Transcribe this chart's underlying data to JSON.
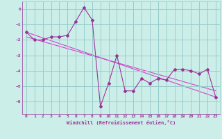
{
  "xlabel": "Windchill (Refroidissement éolien,°C)",
  "ylabel": "",
  "bg_color": "#cceee8",
  "grid_color": "#99cccc",
  "line_color": "#993399",
  "xlim": [
    -0.5,
    23.5
  ],
  "ylim": [
    -6.8,
    0.5
  ],
  "yticks": [
    0,
    -1,
    -2,
    -3,
    -4,
    -5,
    -6
  ],
  "xticks": [
    0,
    1,
    2,
    3,
    4,
    5,
    6,
    7,
    8,
    9,
    10,
    11,
    12,
    13,
    14,
    15,
    16,
    17,
    18,
    19,
    20,
    21,
    22,
    23
  ],
  "series1_x": [
    0,
    1,
    2,
    3,
    4,
    5,
    6,
    7,
    8,
    9,
    10,
    11,
    12,
    13,
    14,
    15,
    16,
    17,
    18,
    19,
    20,
    21,
    22,
    23
  ],
  "series1_y": [
    -1.5,
    -2.0,
    -2.0,
    -1.8,
    -1.8,
    -1.7,
    -0.8,
    0.1,
    -0.7,
    -6.3,
    -4.8,
    -3.0,
    -5.3,
    -5.3,
    -4.5,
    -4.8,
    -4.5,
    -4.6,
    -3.9,
    -3.9,
    -4.0,
    -4.2,
    -3.9,
    -5.7
  ],
  "trend1_x": [
    0,
    23
  ],
  "trend1_y": [
    -1.5,
    -5.7
  ],
  "trend2_x": [
    0,
    23
  ],
  "trend2_y": [
    -1.8,
    -5.3
  ],
  "trend_color": "#cc44cc"
}
